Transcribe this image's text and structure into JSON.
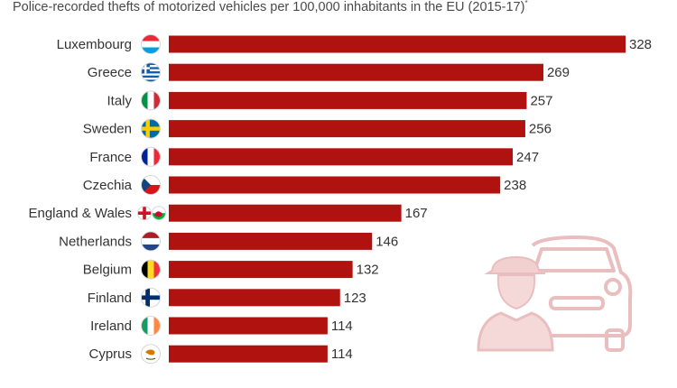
{
  "title": "Police-recorded thefts of motorized vehicles per 100,000 inhabitants in the EU (2015-17)",
  "title_footnote_mark": "*",
  "colors": {
    "bar": "#b0120f",
    "text": "#333333",
    "illustration": "#e8b9b9"
  },
  "illustration": "thief-and-car-icon",
  "chart_data": {
    "type": "bar",
    "orientation": "horizontal",
    "title": "Police-recorded thefts of motorized vehicles per 100,000 inhabitants in the EU (2015-17)",
    "categories": [
      "Luxembourg",
      "Greece",
      "Italy",
      "Sweden",
      "France",
      "Czechia",
      "England & Wales",
      "Netherlands",
      "Belgium",
      "Finland",
      "Ireland",
      "Cyprus"
    ],
    "flags": [
      "luxembourg-flag-icon",
      "greece-flag-icon",
      "italy-flag-icon",
      "sweden-flag-icon",
      "france-flag-icon",
      "czechia-flag-icon",
      "england-wales-flag-icon",
      "netherlands-flag-icon",
      "belgium-flag-icon",
      "finland-flag-icon",
      "ireland-flag-icon",
      "cyprus-flag-icon"
    ],
    "values": [
      328,
      269,
      257,
      256,
      247,
      238,
      167,
      146,
      132,
      123,
      114,
      114
    ],
    "xlabel": "",
    "ylabel": "",
    "xlim": [
      0,
      330
    ],
    "grid": false,
    "data_labels": true
  }
}
